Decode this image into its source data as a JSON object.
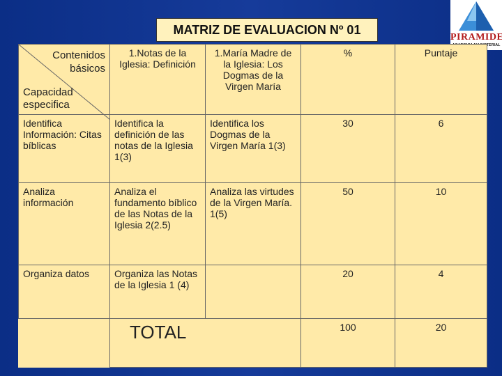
{
  "title": "MATRIZ DE EVALUACION Nº 01",
  "logo": {
    "name": "PIRAMIDE",
    "subtitle": "ACADEMIA MAGISTERIAL"
  },
  "header": {
    "contenidos": [
      "Contenidos",
      "básicos"
    ],
    "capacidad": [
      "Capacidad",
      "especifica"
    ],
    "col1": "1.Notas de la Iglesia: Definición",
    "col2": "1.María Madre de la Iglesia: Los Dogmas de la Virgen María",
    "percent": "%",
    "puntaje": "Puntaje"
  },
  "rows": [
    {
      "capacidad": "Identifica Información: Citas bíblicas",
      "c1": "Identifica la definición de las notas de la Iglesia 1(3)",
      "c2": "Identifica los Dogmas de la Virgen María 1(3)",
      "percent": "30",
      "puntaje": "6"
    },
    {
      "capacidad": "Analiza información",
      "c1": "Analiza el fundamento bíblico de las Notas de la Iglesia 2(2.5)",
      "c2": "Analiza las virtudes de la Virgen María. 1(5)",
      "percent": "50",
      "puntaje": "10"
    },
    {
      "capacidad": "Organiza datos",
      "c1": "Organiza las Notas de la Iglesia 1 (4)",
      "c2": "",
      "percent": "20",
      "puntaje": "4"
    }
  ],
  "total": {
    "label": "TOTAL",
    "percent": "100",
    "puntaje": "20"
  }
}
